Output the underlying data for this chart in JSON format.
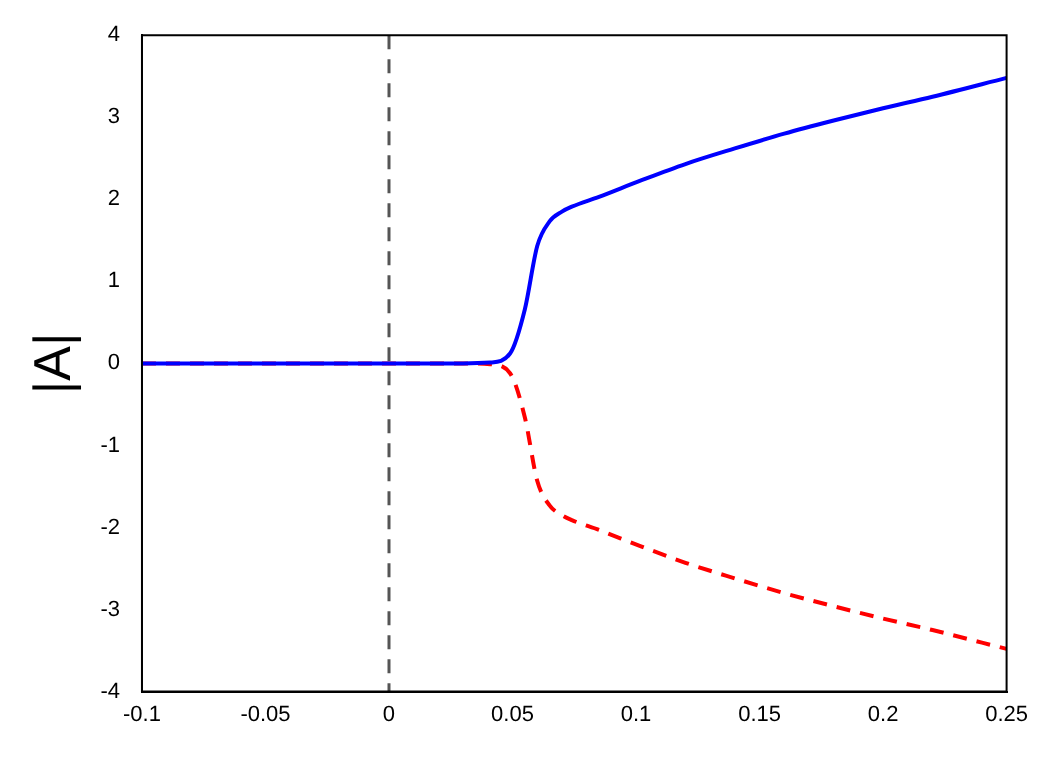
{
  "chart_data": {
    "type": "line",
    "ylabel": "|A|",
    "x": [
      -0.1,
      0,
      0.03,
      0.041,
      0.049,
      0.055,
      0.06,
      0.065,
      0.07,
      0.074,
      0.085,
      0.102,
      0.12,
      0.14,
      0.16,
      0.18,
      0.2,
      0.22,
      0.25
    ],
    "series": [
      {
        "color": "#0000ff",
        "line_style": "solid",
        "values": [
          0,
          0,
          0,
          0.01,
          0.12,
          0.66,
          1.43,
          1.73,
          1.85,
          1.91,
          2.03,
          2.23,
          2.43,
          2.62,
          2.8,
          2.96,
          3.11,
          3.25,
          3.48
        ]
      },
      {
        "color": "#ff0000",
        "line_style": "dashed",
        "values": [
          0,
          0,
          0,
          -0.01,
          -0.12,
          -0.66,
          -1.43,
          -1.73,
          -1.85,
          -1.91,
          -2.03,
          -2.23,
          -2.43,
          -2.62,
          -2.8,
          -2.96,
          -3.11,
          -3.25,
          -3.48
        ]
      }
    ],
    "xlim": [
      -0.1,
      0.25
    ],
    "xticks": [
      -0.1,
      -0.05,
      0,
      0.05,
      0.1,
      0.15,
      0.2,
      0.25
    ],
    "ylim": [
      -4,
      4
    ],
    "yticks": [
      -4,
      -3,
      -2,
      -1,
      0,
      1,
      2,
      3,
      4
    ],
    "ref_lines": [
      {
        "axis": "x",
        "value": 0,
        "color": "#555555",
        "line_style": "dashed"
      }
    ],
    "grid": false,
    "legend": false,
    "marker": "none"
  }
}
